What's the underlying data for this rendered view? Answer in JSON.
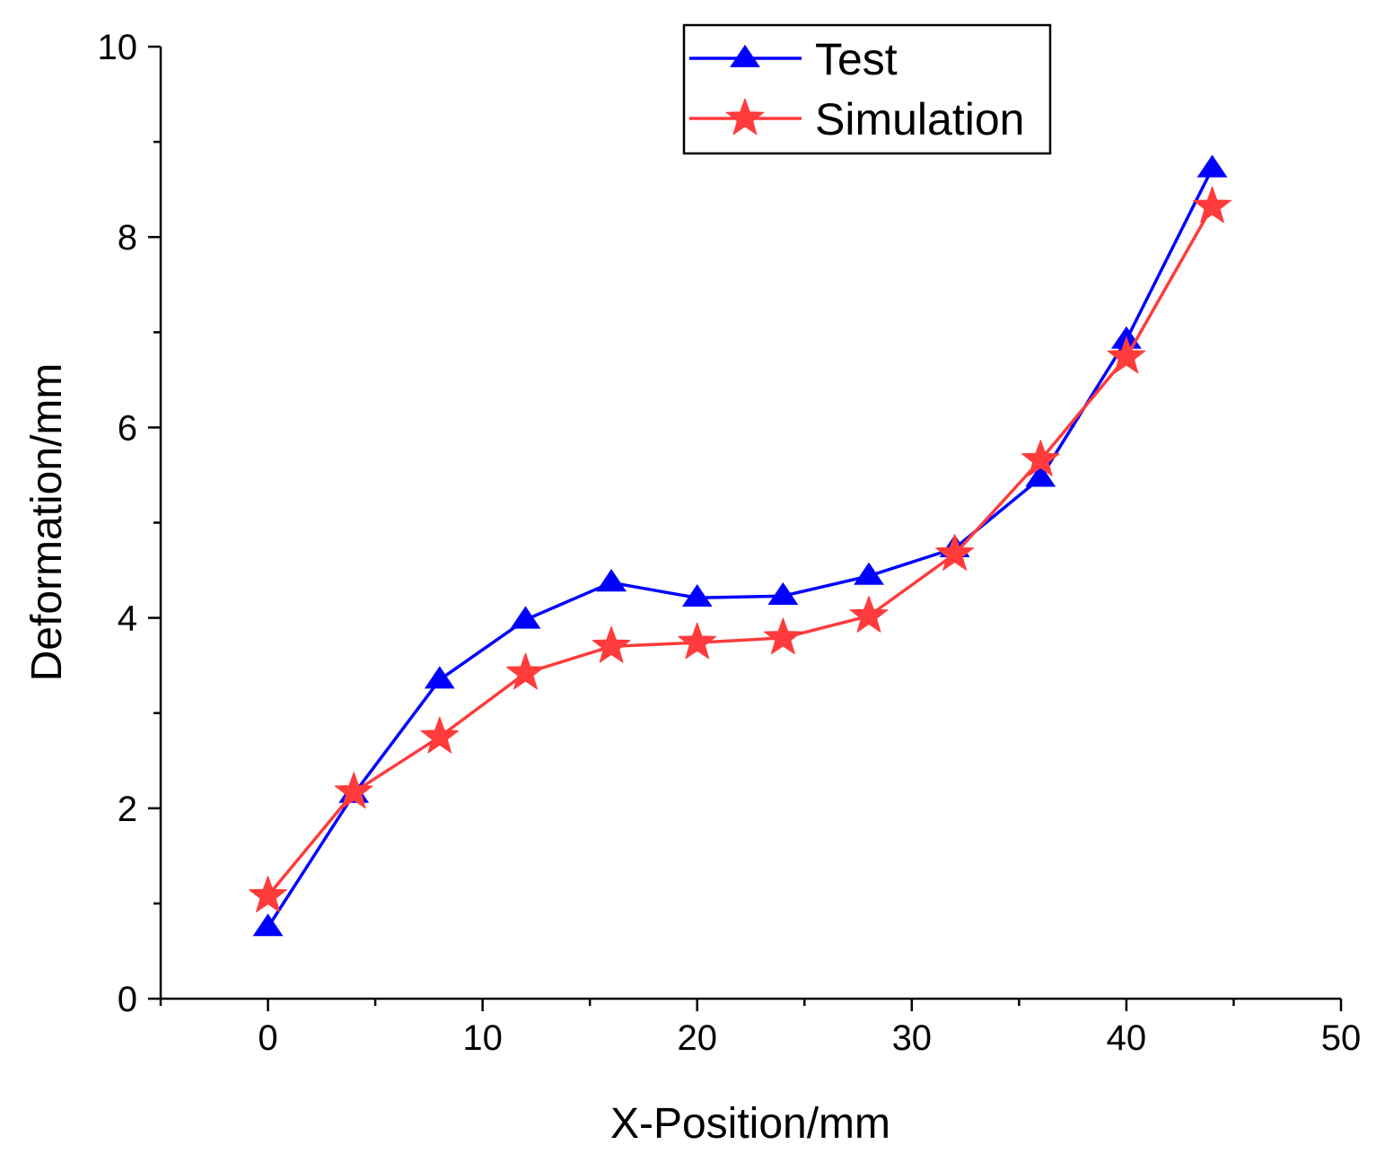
{
  "chart_data": {
    "type": "line",
    "title": "",
    "xlabel": "X-Position/mm",
    "ylabel": "Deformation/mm",
    "xlim": [
      -5,
      50
    ],
    "ylim": [
      0,
      10
    ],
    "xticks": [
      0,
      10,
      20,
      30,
      40,
      50
    ],
    "yticks": [
      0,
      2,
      4,
      6,
      8,
      10
    ],
    "x_tick_labels": [
      "0",
      "10",
      "20",
      "30",
      "40",
      "50"
    ],
    "y_tick_labels": [
      "0",
      "2",
      "4",
      "6",
      "8",
      "10"
    ],
    "x_minor_step": 5,
    "y_minor_step": 1,
    "grid": false,
    "legend_position": "top-center",
    "x": [
      0,
      4,
      8,
      12,
      16,
      20,
      24,
      28,
      32,
      36,
      40,
      44
    ],
    "series": [
      {
        "name": "Test",
        "color": "#0000ff",
        "marker": "triangle",
        "values": [
          0.75,
          2.15,
          3.35,
          3.98,
          4.37,
          4.21,
          4.23,
          4.44,
          4.73,
          5.47,
          6.92,
          8.72
        ]
      },
      {
        "name": "Simulation",
        "color": "#ff3b3b",
        "marker": "star",
        "values": [
          1.08,
          2.17,
          2.75,
          3.42,
          3.7,
          3.74,
          3.79,
          4.02,
          4.67,
          5.66,
          6.74,
          8.32
        ]
      }
    ]
  }
}
